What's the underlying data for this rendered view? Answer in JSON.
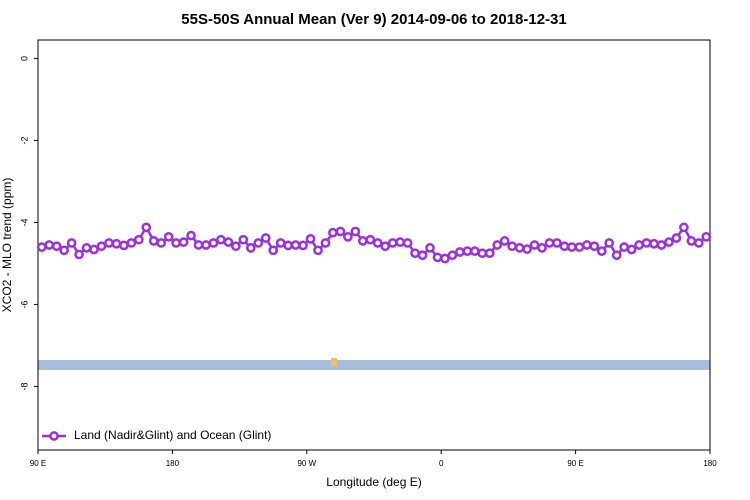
{
  "chart_data": {
    "type": "line",
    "title": "55S-50S Annual Mean (Ver 9)   2014-09-06 to 2018-12-31",
    "x_label": "Longitude (deg E)",
    "y_label": "XCO2 - MLO trend (ppm)",
    "xlim": [
      90,
      540
    ],
    "ylim": [
      -9.55,
      0.45
    ],
    "xticks": [
      {
        "value": 90,
        "label": "90 E"
      },
      {
        "value": 180,
        "label": "180"
      },
      {
        "value": 270,
        "label": "90 W"
      },
      {
        "value": 360,
        "label": "0"
      },
      {
        "value": 450,
        "label": "90 E"
      },
      {
        "value": 540,
        "label": "180"
      }
    ],
    "yticks": [
      0,
      -2,
      -4,
      -6,
      -8
    ],
    "legend": "bottom-left",
    "x": [
      92.5,
      97.5,
      102.5,
      107.5,
      112.5,
      117.5,
      122.5,
      127.5,
      132.5,
      137.5,
      142.5,
      147.5,
      152.5,
      157.5,
      162.5,
      167.5,
      172.5,
      177.5,
      182.5,
      187.5,
      192.5,
      197.5,
      202.5,
      207.5,
      212.5,
      217.5,
      222.5,
      227.5,
      232.5,
      237.5,
      242.5,
      247.5,
      252.5,
      257.5,
      262.5,
      267.5,
      272.5,
      277.5,
      282.5,
      287.5,
      292.5,
      297.5,
      302.5,
      307.5,
      312.5,
      317.5,
      322.5,
      327.5,
      332.5,
      337.5,
      342.5,
      347.5,
      352.5,
      357.5,
      362.5,
      367.5,
      372.5,
      377.5,
      382.5,
      387.5,
      392.5,
      397.5,
      402.5,
      407.5,
      412.5,
      417.5,
      422.5,
      427.5,
      432.5,
      437.5,
      442.5,
      447.5,
      452.5,
      457.5,
      462.5,
      467.5,
      472.5,
      477.5,
      482.5,
      487.5,
      492.5,
      497.5,
      502.5,
      507.5,
      512.5,
      517.5,
      522.5,
      527.5,
      532.5,
      537.5
    ],
    "series": [
      {
        "name": "Land (Nadir&Glint) and Ocean (Glint)",
        "color": "#9b30e0",
        "values": [
          -4.6,
          -4.55,
          -4.58,
          -4.68,
          -4.5,
          -4.78,
          -4.62,
          -4.66,
          -4.58,
          -4.5,
          -4.52,
          -4.56,
          -4.5,
          -4.42,
          -4.12,
          -4.45,
          -4.5,
          -4.35,
          -4.5,
          -4.48,
          -4.32,
          -4.55,
          -4.55,
          -4.5,
          -4.42,
          -4.48,
          -4.58,
          -4.42,
          -4.62,
          -4.5,
          -4.38,
          -4.68,
          -4.5,
          -4.56,
          -4.55,
          -4.56,
          -4.4,
          -4.68,
          -4.5,
          -4.25,
          -4.22,
          -4.35,
          -4.22,
          -4.45,
          -4.42,
          -4.5,
          -4.58,
          -4.5,
          -4.48,
          -4.5,
          -4.75,
          -4.8,
          -4.62,
          -4.85,
          -4.88,
          -4.8,
          -4.72,
          -4.7,
          -4.7,
          -4.75,
          -4.75,
          -4.55,
          -4.45,
          -4.58,
          -4.62,
          -4.65,
          -4.55,
          -4.62,
          -4.5,
          -4.5,
          -4.58,
          -4.6,
          -4.6,
          -4.55,
          -4.58,
          -4.7,
          -4.5,
          -4.8,
          -4.6,
          -4.66,
          -4.55,
          -4.5,
          -4.52,
          -4.55,
          -4.48,
          -4.38,
          -4.12,
          -4.45,
          -4.5,
          -4.35
        ]
      }
    ]
  }
}
